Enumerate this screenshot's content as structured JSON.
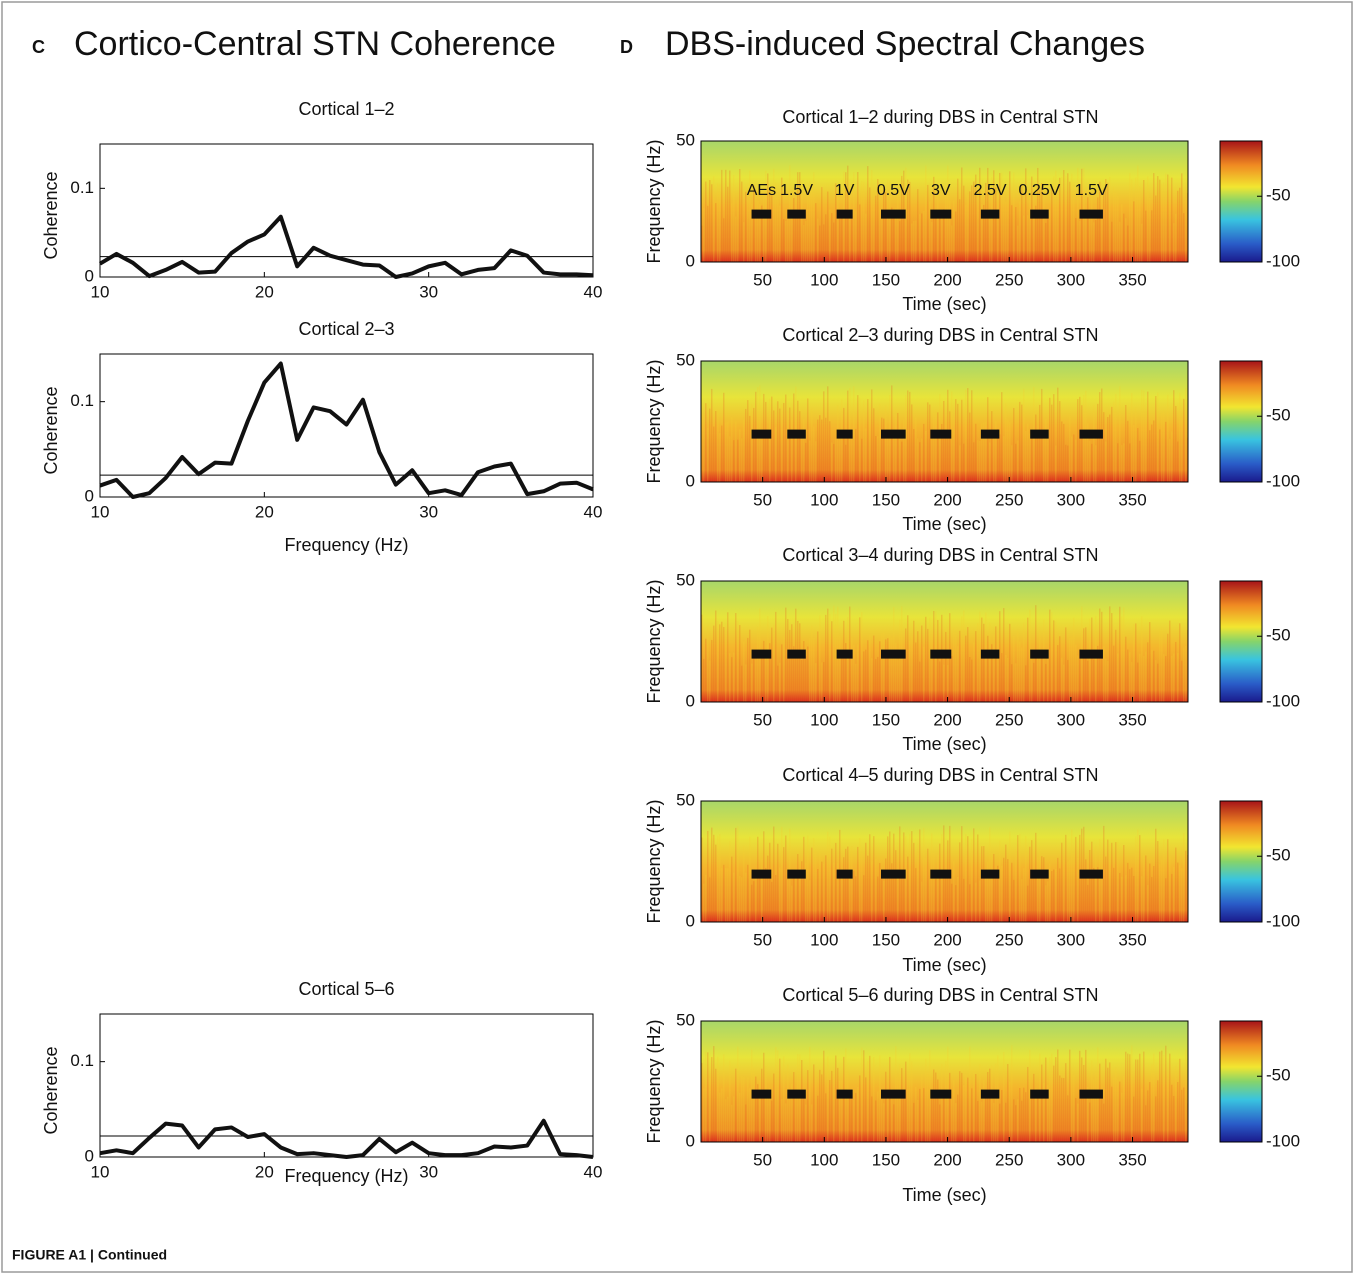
{
  "header": [
    {
      "letter": "C",
      "title": "Cortico-Central STN Coherence"
    },
    {
      "letter": "D",
      "title": "DBS-induced Spectral Changes"
    }
  ],
  "caption": "FIGURE A1 | Continued",
  "chart_data": [
    {
      "type": "line",
      "title": "Cortical 1–2",
      "ylabel": "Coherence",
      "color": "#111111",
      "x": [
        10,
        11,
        12,
        13,
        14,
        15,
        16,
        17,
        18,
        19,
        20,
        21,
        22,
        23,
        24,
        25,
        26,
        27,
        28,
        29,
        30,
        31,
        32,
        33,
        34,
        35,
        36,
        37,
        38,
        39,
        40
      ],
      "values": [
        0.015,
        0.026,
        0.016,
        0.001,
        0.008,
        0.017,
        0.005,
        0.006,
        0.027,
        0.04,
        0.048,
        0.068,
        0.012,
        0.033,
        0.024,
        0.019,
        0.014,
        0.013,
        0.0,
        0.004,
        0.012,
        0.016,
        0.003,
        0.008,
        0.01,
        0.03,
        0.024,
        0.005,
        0.003,
        0.003,
        0.002
      ],
      "threshold": 0.023,
      "xlim": [
        10,
        40
      ],
      "ylim": [
        0,
        0.15
      ],
      "xticks": [
        10,
        20,
        30,
        40
      ],
      "yticks": [
        0,
        0.1
      ]
    },
    {
      "type": "line",
      "title": "Cortical 2–3",
      "xlabel": "Frequency (Hz)",
      "ylabel": "Coherence",
      "color": "#111111",
      "x": [
        10,
        11,
        12,
        13,
        14,
        15,
        16,
        17,
        18,
        19,
        20,
        21,
        22,
        23,
        24,
        25,
        26,
        27,
        28,
        29,
        30,
        31,
        32,
        33,
        34,
        35,
        36,
        37,
        38,
        39,
        40
      ],
      "values": [
        0.012,
        0.018,
        0.0,
        0.004,
        0.02,
        0.042,
        0.024,
        0.036,
        0.035,
        0.08,
        0.12,
        0.14,
        0.06,
        0.094,
        0.09,
        0.076,
        0.102,
        0.047,
        0.013,
        0.028,
        0.004,
        0.007,
        0.002,
        0.026,
        0.032,
        0.035,
        0.003,
        0.006,
        0.014,
        0.015,
        0.008
      ],
      "threshold": 0.023,
      "xlim": [
        10,
        40
      ],
      "ylim": [
        0,
        0.15
      ],
      "xticks": [
        10,
        20,
        30,
        40
      ],
      "yticks": [
        0,
        0.1
      ]
    },
    {
      "type": "line",
      "title": "Cortical 5–6",
      "xlabel": "Frequency (Hz)",
      "ylabel": "Coherence",
      "color": "#111111",
      "x": [
        10,
        11,
        12,
        13,
        14,
        15,
        16,
        17,
        18,
        19,
        20,
        21,
        22,
        23,
        24,
        25,
        26,
        27,
        28,
        29,
        30,
        31,
        32,
        33,
        34,
        35,
        36,
        37,
        38,
        39,
        40
      ],
      "values": [
        0.004,
        0.007,
        0.004,
        0.02,
        0.035,
        0.033,
        0.01,
        0.029,
        0.031,
        0.021,
        0.024,
        0.01,
        0.003,
        0.004,
        0.002,
        0.0,
        0.002,
        0.019,
        0.005,
        0.015,
        0.004,
        0.002,
        0.002,
        0.004,
        0.011,
        0.01,
        0.012,
        0.038,
        0.003,
        0.002,
        0.0
      ],
      "threshold": 0.022,
      "xlim": [
        10,
        40
      ],
      "ylim": [
        0,
        0.15
      ],
      "xticks": [
        10,
        20,
        30,
        40
      ],
      "yticks": [
        0,
        0.1
      ]
    },
    {
      "type": "spectrogram",
      "title": "Cortical 1–2 during DBS in Central STN",
      "xlabel": "Time (sec)",
      "ylabel": "Frequency (Hz)",
      "xlim": [
        0,
        395
      ],
      "ylim": [
        0,
        50
      ],
      "xticks": [
        50,
        100,
        150,
        200,
        250,
        300,
        350
      ],
      "yticks": [
        0,
        50
      ],
      "clim": [
        -100,
        -8
      ],
      "cticks": [
        -50,
        -100
      ],
      "stim_frequency": 20,
      "stim_periods": [
        {
          "start": 41,
          "end": 57,
          "label": "AEs"
        },
        {
          "start": 70,
          "end": 85,
          "label": "1.5V"
        },
        {
          "start": 110,
          "end": 123,
          "label": "1V"
        },
        {
          "start": 146,
          "end": 166,
          "label": "0.5V"
        },
        {
          "start": 186,
          "end": 203,
          "label": "3V"
        },
        {
          "start": 227,
          "end": 242,
          "label": "2.5V"
        },
        {
          "start": 267,
          "end": 282,
          "label": "0.25V"
        },
        {
          "start": 307,
          "end": 326,
          "label": "1.5V"
        }
      ]
    },
    {
      "type": "spectrogram",
      "title": "Cortical 2–3 during DBS in Central STN",
      "xlabel": "Time (sec)",
      "ylabel": "Frequency (Hz)",
      "xlim": [
        0,
        395
      ],
      "ylim": [
        0,
        50
      ],
      "xticks": [
        50,
        100,
        150,
        200,
        250,
        300,
        350
      ],
      "yticks": [
        0,
        50
      ],
      "clim": [
        -100,
        -8
      ],
      "cticks": [
        -50,
        -100
      ],
      "stim_frequency": 20,
      "stim_periods": [
        {
          "start": 41,
          "end": 57
        },
        {
          "start": 70,
          "end": 85
        },
        {
          "start": 110,
          "end": 123
        },
        {
          "start": 146,
          "end": 166
        },
        {
          "start": 186,
          "end": 203
        },
        {
          "start": 227,
          "end": 242
        },
        {
          "start": 267,
          "end": 282
        },
        {
          "start": 307,
          "end": 326
        }
      ]
    },
    {
      "type": "spectrogram",
      "title": "Cortical 3–4 during DBS in Central STN",
      "xlabel": "Time (sec)",
      "ylabel": "Frequency (Hz)",
      "xlim": [
        0,
        395
      ],
      "ylim": [
        0,
        50
      ],
      "xticks": [
        50,
        100,
        150,
        200,
        250,
        300,
        350
      ],
      "yticks": [
        0,
        50
      ],
      "clim": [
        -100,
        -8
      ],
      "cticks": [
        -50,
        -100
      ],
      "stim_frequency": 20,
      "stim_periods": [
        {
          "start": 41,
          "end": 57
        },
        {
          "start": 70,
          "end": 85
        },
        {
          "start": 110,
          "end": 123
        },
        {
          "start": 146,
          "end": 166
        },
        {
          "start": 186,
          "end": 203
        },
        {
          "start": 227,
          "end": 242
        },
        {
          "start": 267,
          "end": 282
        },
        {
          "start": 307,
          "end": 326
        }
      ]
    },
    {
      "type": "spectrogram",
      "title": "Cortical 4–5 during DBS in Central STN",
      "xlabel": "Time (sec)",
      "ylabel": "Frequency (Hz)",
      "xlim": [
        0,
        395
      ],
      "ylim": [
        0,
        50
      ],
      "xticks": [
        50,
        100,
        150,
        200,
        250,
        300,
        350
      ],
      "yticks": [
        0,
        50
      ],
      "clim": [
        -100,
        -8
      ],
      "cticks": [
        -50,
        -100
      ],
      "stim_frequency": 20,
      "stim_periods": [
        {
          "start": 41,
          "end": 57
        },
        {
          "start": 70,
          "end": 85
        },
        {
          "start": 110,
          "end": 123
        },
        {
          "start": 146,
          "end": 166
        },
        {
          "start": 186,
          "end": 203
        },
        {
          "start": 227,
          "end": 242
        },
        {
          "start": 267,
          "end": 282
        },
        {
          "start": 307,
          "end": 326
        }
      ]
    },
    {
      "type": "spectrogram",
      "title": "Cortical 5–6 during DBS in Central STN",
      "xlabel": "Time (sec)",
      "ylabel": "Frequency (Hz)",
      "xlim": [
        0,
        395
      ],
      "ylim": [
        0,
        50
      ],
      "xticks": [
        50,
        100,
        150,
        200,
        250,
        300,
        350
      ],
      "yticks": [
        0,
        50
      ],
      "clim": [
        -100,
        -8
      ],
      "cticks": [
        -50,
        -100
      ],
      "stim_frequency": 20,
      "stim_periods": [
        {
          "start": 41,
          "end": 57
        },
        {
          "start": 70,
          "end": 85
        },
        {
          "start": 110,
          "end": 123
        },
        {
          "start": 146,
          "end": 166
        },
        {
          "start": 186,
          "end": 203
        },
        {
          "start": 227,
          "end": 242
        },
        {
          "start": 267,
          "end": 282
        },
        {
          "start": 307,
          "end": 326
        }
      ]
    }
  ]
}
